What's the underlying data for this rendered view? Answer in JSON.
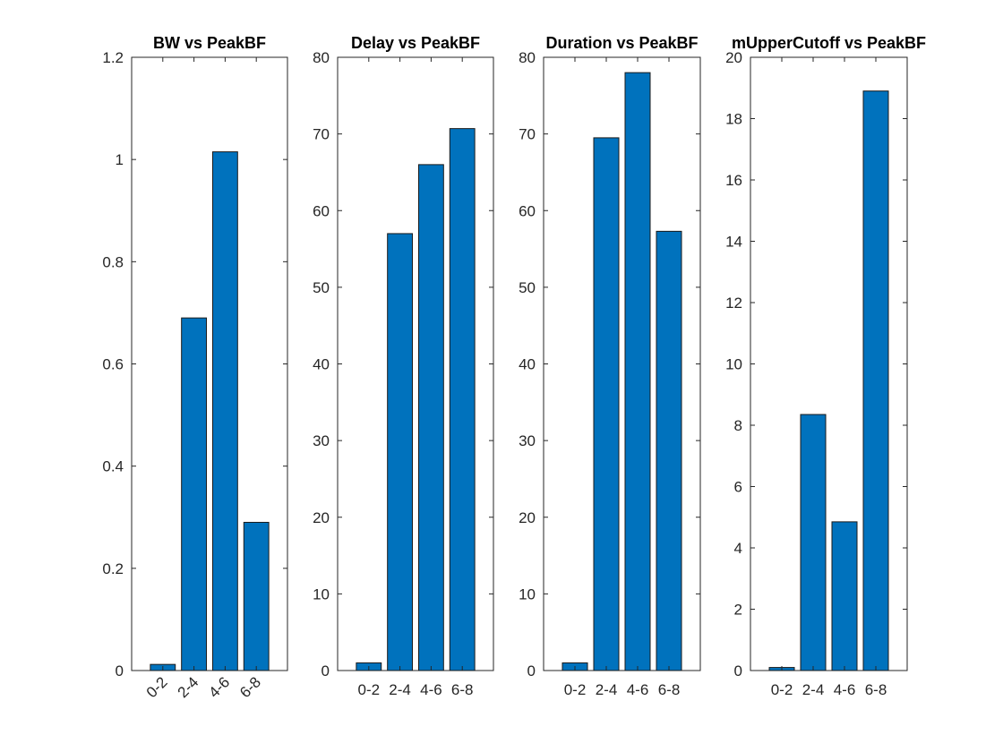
{
  "chart_data": [
    {
      "type": "bar",
      "title": "BW vs PeakBF",
      "categories": [
        "0-2",
        "2-4",
        "4-6",
        "6-8"
      ],
      "values": [
        0.012,
        0.69,
        1.015,
        0.29
      ],
      "ylim": [
        0,
        1.2
      ],
      "yticks": [
        "0",
        "0.2",
        "0.4",
        "0.6",
        "0.8",
        "1",
        "1.2"
      ],
      "xtick_rotation": "rotated",
      "bar_color": "#0072BD",
      "grid": false
    },
    {
      "type": "bar",
      "title": "Delay vs PeakBF",
      "categories": [
        "0-2",
        "2-4",
        "4-6",
        "6-8"
      ],
      "values": [
        1,
        57,
        66,
        70.7
      ],
      "ylim": [
        0,
        80
      ],
      "yticks": [
        "0",
        "10",
        "20",
        "30",
        "40",
        "50",
        "60",
        "70",
        "80"
      ],
      "xtick_rotation": "horizontal",
      "bar_color": "#0072BD",
      "grid": false
    },
    {
      "type": "bar",
      "title": "Duration vs PeakBF",
      "categories": [
        "0-2",
        "2-4",
        "4-6",
        "6-8"
      ],
      "values": [
        1,
        69.5,
        78,
        57.3
      ],
      "ylim": [
        0,
        80
      ],
      "yticks": [
        "0",
        "10",
        "20",
        "30",
        "40",
        "50",
        "60",
        "70",
        "80"
      ],
      "xtick_rotation": "horizontal",
      "bar_color": "#0072BD",
      "grid": false
    },
    {
      "type": "bar",
      "title": "mUpperCutoff vs PeakBF",
      "categories": [
        "0-2",
        "2-4",
        "4-6",
        "6-8"
      ],
      "values": [
        0.1,
        8.35,
        4.85,
        18.9
      ],
      "ylim": [
        0,
        20
      ],
      "yticks": [
        "0",
        "2",
        "4",
        "6",
        "8",
        "10",
        "12",
        "14",
        "16",
        "18",
        "20"
      ],
      "xtick_rotation": "horizontal",
      "bar_color": "#0072BD",
      "grid": false
    }
  ]
}
